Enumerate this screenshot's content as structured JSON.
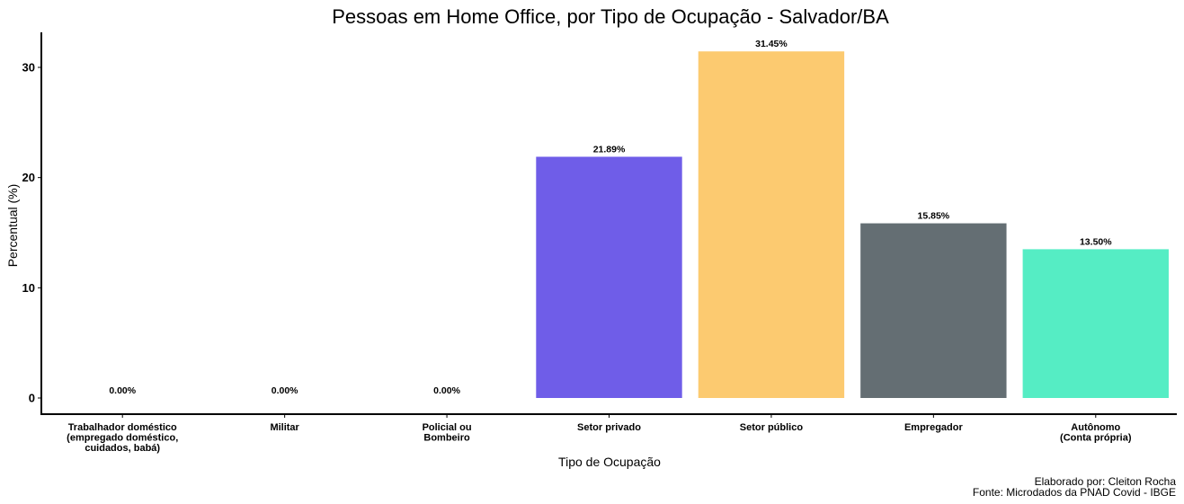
{
  "chart_data": {
    "type": "bar",
    "title": "Pessoas em Home Office, por Tipo de Ocupação - Salvador/BA",
    "xlabel": "Tipo de Ocupação",
    "ylabel": "Percentual (%)",
    "ylim": [
      0,
      33
    ],
    "yticks": [
      0,
      10,
      20,
      30
    ],
    "grid": false,
    "legend": "none",
    "categories": [
      [
        "Trabalhador doméstico",
        "(empregado doméstico,",
        "cuidados, babá)"
      ],
      [
        "Militar"
      ],
      [
        "Policial ou",
        "Bombeiro"
      ],
      [
        "Setor privado"
      ],
      [
        "Setor público"
      ],
      [
        "Empregador"
      ],
      [
        "Autônomo",
        "(Conta própria)"
      ]
    ],
    "values": [
      0.0,
      0.0,
      0.0,
      21.89,
      31.45,
      15.85,
      13.5
    ],
    "data_labels": [
      "0.00%",
      "0.00%",
      "0.00%",
      "21.89%",
      "31.45%",
      "15.85%",
      "13.50%"
    ],
    "colors": [
      "#6f5de8",
      "#6f5de8",
      "#6f5de8",
      "#6f5de8",
      "#fcca70",
      "#646e73",
      "#55edc4"
    ]
  },
  "caption": {
    "line1": "Elaborado por: Cleiton Rocha",
    "line2": "Fonte: Microdados da PNAD Covid - IBGE"
  }
}
